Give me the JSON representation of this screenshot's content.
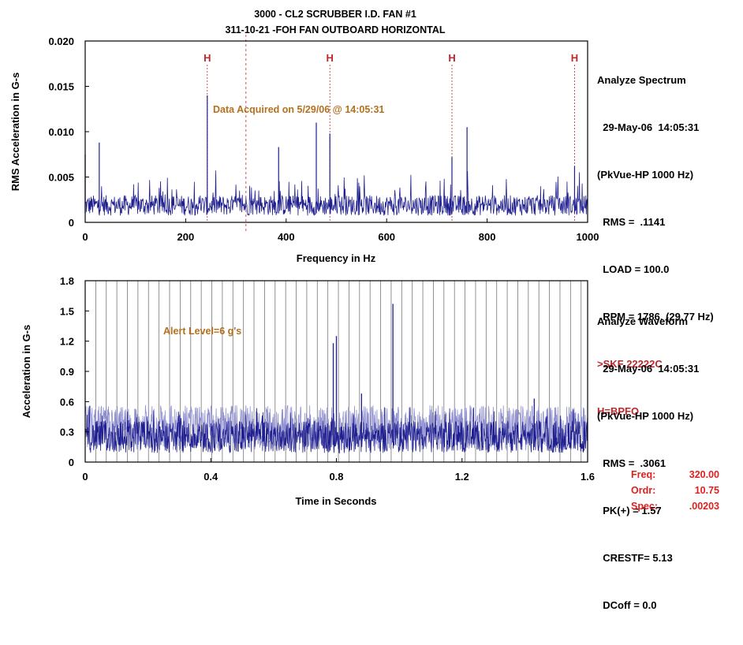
{
  "header": {
    "title_line1": "3000 - CL2 SCRUBBER I.D. FAN #1",
    "title_line2": "311-10-21 -FOH   FAN OUTBOARD HORIZONTAL"
  },
  "spectrum_panel": {
    "lines": [
      "Analyze Spectrum",
      "  29-May-06  14:05:31",
      "(PkVue-HP 1000 Hz)",
      "  RMS =  .1141",
      "  LOAD = 100.0",
      "  RPM = 1786. (29.77 Hz)"
    ],
    "notes": [
      ">SKF 22222C",
      "H=BPFO"
    ]
  },
  "waveform_panel": {
    "lines": [
      "Analyze Waveform",
      "  29-May-06  14:05:31",
      "(PkVue-HP 1000 Hz)",
      "  RMS =  .3061",
      "  PK(+) = 1.57",
      "  CRESTF= 5.13",
      "  DCoff = 0.0"
    ]
  },
  "cursor_readout": [
    {
      "label": "Freq:",
      "value": "320.00"
    },
    {
      "label": "Ordr:",
      "value": "10.75"
    },
    {
      "label": "Spec:",
      "value": ".00203"
    }
  ],
  "colors": {
    "trace": "#1f1f8f",
    "trace_light": "#8f8fd0",
    "marker": "#c0272d",
    "annotation": "#b5701e",
    "readout": "#e0201f"
  },
  "chart_data": [
    {
      "type": "line",
      "name": "spectrum",
      "title": "",
      "xlabel": "Frequency in Hz",
      "ylabel": "RMS Acceleration in G-s",
      "xlim": [
        0,
        1000
      ],
      "ylim": [
        0,
        0.02
      ],
      "xticks": [
        0,
        200,
        400,
        600,
        800,
        1000
      ],
      "yticks": [
        0,
        0.005,
        0.01,
        0.015,
        0.02
      ],
      "ytick_labels": [
        "0",
        "0.005",
        "0.010",
        "0.015",
        "0.020"
      ],
      "grid": false,
      "annotation": "Data Acquired on 5/29/06 @ 14:05:31",
      "harmonic_markers": {
        "label": "H",
        "x": [
          243,
          487,
          730,
          974
        ]
      },
      "cursor_x": 320,
      "noise_floor": 0.0025,
      "peaks": [
        {
          "x": 0,
          "y": 0.0075
        },
        {
          "x": 28,
          "y": 0.0088
        },
        {
          "x": 243,
          "y": 0.014
        },
        {
          "x": 385,
          "y": 0.0083
        },
        {
          "x": 460,
          "y": 0.011
        },
        {
          "x": 487,
          "y": 0.0098
        },
        {
          "x": 730,
          "y": 0.0072
        },
        {
          "x": 760,
          "y": 0.0105
        },
        {
          "x": 974,
          "y": 0.0062
        }
      ]
    },
    {
      "type": "line",
      "name": "waveform",
      "title": "",
      "xlabel": "Time in Seconds",
      "ylabel": "Acceleration in G-s",
      "xlim": [
        0,
        1.6
      ],
      "ylim": [
        0,
        1.8
      ],
      "xticks": [
        0,
        0.4,
        0.8,
        1.2,
        1.6
      ],
      "yticks": [
        0,
        0.3,
        0.6,
        0.9,
        1.2,
        1.5,
        1.8
      ],
      "grid": false,
      "annotation": "Alert Level=6 g's",
      "pulse_markers": {
        "start": 0.0,
        "interval": 0.0336,
        "count": 48
      },
      "baseline": 0.25,
      "peaks": [
        {
          "x": 0.79,
          "y": 1.18
        },
        {
          "x": 0.8,
          "y": 1.25
        },
        {
          "x": 0.98,
          "y": 1.57
        },
        {
          "x": 0.88,
          "y": 0.68
        },
        {
          "x": 1.43,
          "y": 0.63
        }
      ]
    }
  ]
}
